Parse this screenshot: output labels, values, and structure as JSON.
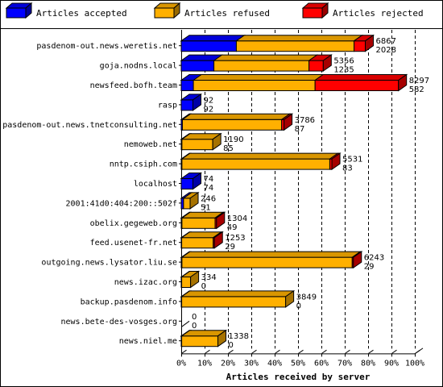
{
  "legend": [
    {
      "label": "Articles accepted",
      "color": "#0000ff"
    },
    {
      "label": "Articles refused",
      "color": "#ffb000"
    },
    {
      "label": "Articles rejected",
      "color": "#ff0000"
    }
  ],
  "chart_data": {
    "type": "bar",
    "orientation": "horizontal",
    "stacked": true,
    "xlabel": "Articles received by server",
    "ylabel": "",
    "xlim": [
      0,
      100
    ],
    "x_tick_labels": [
      "0%",
      "10%",
      "20%",
      "30%",
      "40%",
      "50%",
      "60%",
      "70%",
      "80%",
      "90%",
      "100%"
    ],
    "grid": "vertical dashed",
    "legend_position": "top",
    "categories": [
      "pasdenom-out.news.weretis.net",
      "goja.nodns.local",
      "newsfeed.bofh.team",
      "rasp",
      "pasdenom-out.news.tnetconsulting.net",
      "nemoweb.net",
      "nntp.csiph.com",
      "localhost",
      "2001:41d0:404:200::502f",
      "obelix.gegeweb.org",
      "feed.usenet-fr.net",
      "outgoing.news.lysator.liu.se",
      "news.izac.org",
      "backup.pasdenom.info",
      "news.bete-des-vosges.org",
      "news.niel.me"
    ],
    "labels_top": [
      "6867",
      "5356",
      "8297",
      "92",
      "3786",
      "1190",
      "5531",
      "74",
      "246",
      "1304",
      "1253",
      "6243",
      "334",
      "3849",
      "0",
      "1338"
    ],
    "labels_bottom": [
      "2028",
      "1235",
      "582",
      "92",
      "87",
      "85",
      "83",
      "74",
      "51",
      "49",
      "29",
      "29",
      "0",
      "0",
      "0",
      "0"
    ],
    "series": [
      {
        "name": "Articles accepted",
        "color": "#0000ff",
        "values": [
          23.6,
          14.0,
          5.2,
          5.0,
          0.5,
          0.3,
          0.3,
          5.0,
          1.0,
          0.3,
          0.2,
          0.3,
          0.2,
          0.2,
          0,
          0.2
        ]
      },
      {
        "name": "Articles refused",
        "color": "#ffb000",
        "values": [
          50.4,
          40.7,
          52.1,
          0,
          42.5,
          13.2,
          63.3,
          0,
          2.8,
          14.2,
          13.5,
          72.9,
          3.8,
          44.5,
          0,
          15.5
        ]
      },
      {
        "name": "Articles rejected",
        "color": "#ff0000",
        "values": [
          4.8,
          6.1,
          35.7,
          0,
          1.0,
          0,
          0.9,
          0,
          0,
          0.6,
          0.4,
          0.4,
          0,
          0,
          0,
          0
        ]
      }
    ]
  }
}
